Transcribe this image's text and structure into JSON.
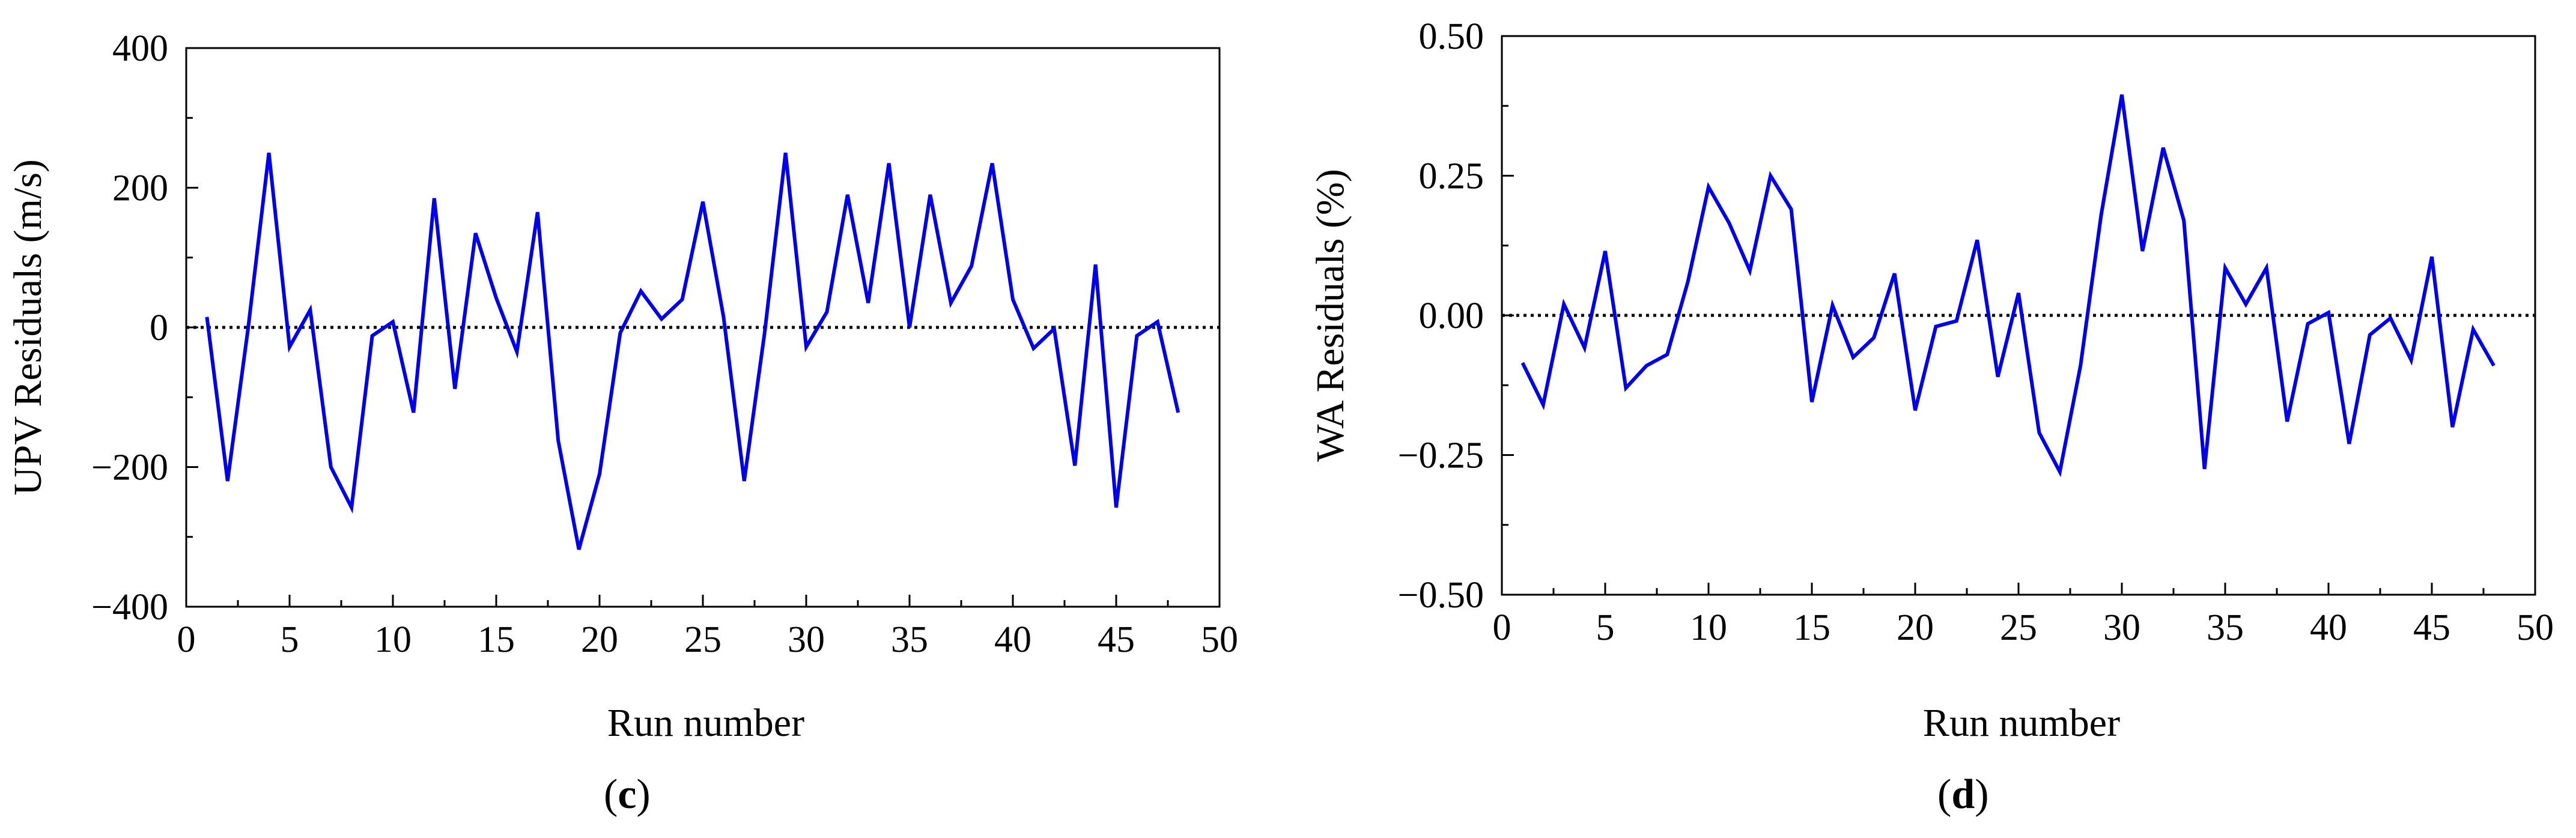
{
  "chart_data": [
    {
      "type": "line",
      "panel": "(c)",
      "panel_letter": "c",
      "xlabel": "Run number",
      "ylabel": "UPV Residuals (m/s)",
      "xlim": [
        0,
        50
      ],
      "ylim": [
        -400,
        400
      ],
      "xticks": [
        0,
        5,
        10,
        15,
        20,
        25,
        30,
        35,
        40,
        45,
        50
      ],
      "yticks": [
        -400,
        -200,
        0,
        200,
        400
      ],
      "ytick_labels": [
        "−400",
        "−200",
        "0",
        "200",
        "400"
      ],
      "reference_line": 0,
      "color": "#0000ee",
      "x": [
        1,
        2,
        3,
        4,
        5,
        6,
        7,
        8,
        9,
        10,
        11,
        12,
        13,
        14,
        15,
        16,
        17,
        18,
        19,
        20,
        21,
        22,
        23,
        24,
        25,
        26,
        27,
        28,
        29,
        30,
        31,
        32,
        33,
        34,
        35,
        36,
        37,
        38,
        39,
        40,
        41,
        42,
        43,
        44,
        45,
        46,
        47,
        48
      ],
      "values": [
        15,
        -220,
        0,
        250,
        -28,
        25,
        -200,
        -258,
        -12,
        8,
        -122,
        185,
        -88,
        135,
        42,
        -35,
        165,
        -162,
        -318,
        -210,
        -8,
        52,
        12,
        40,
        180,
        15,
        -220,
        -5,
        250,
        -28,
        22,
        190,
        35,
        235,
        0,
        190,
        35,
        88,
        235,
        40,
        -30,
        -2,
        -198,
        90,
        -258,
        -12,
        8,
        -122
      ]
    },
    {
      "type": "line",
      "panel": "(d)",
      "panel_letter": "d",
      "xlabel": "Run number",
      "ylabel": "WA Residuals (%)",
      "xlim": [
        0,
        50
      ],
      "ylim": [
        -0.5,
        0.5
      ],
      "xticks": [
        0,
        5,
        10,
        15,
        20,
        25,
        30,
        35,
        40,
        45,
        50
      ],
      "yticks": [
        -0.5,
        -0.25,
        0,
        0.25,
        0.5
      ],
      "ytick_labels": [
        "−0.50",
        "−0.25",
        "0.00",
        "0.25",
        "0.50"
      ],
      "reference_line": 0,
      "color": "#0000ee",
      "x": [
        1,
        2,
        3,
        4,
        5,
        6,
        7,
        8,
        9,
        10,
        11,
        12,
        13,
        14,
        15,
        16,
        17,
        18,
        19,
        20,
        21,
        22,
        23,
        24,
        25,
        26,
        27,
        28,
        29,
        30,
        31,
        32,
        33,
        34,
        35,
        36,
        37,
        38,
        39,
        40,
        41,
        42,
        43,
        44,
        45,
        46,
        47,
        48
      ],
      "values": [
        -0.085,
        -0.16,
        0.02,
        -0.058,
        0.115,
        -0.13,
        -0.09,
        -0.07,
        0.06,
        0.23,
        0.165,
        0.08,
        0.25,
        0.19,
        -0.155,
        0.018,
        -0.075,
        -0.04,
        0.075,
        -0.17,
        -0.02,
        -0.01,
        0.135,
        -0.11,
        0.04,
        -0.21,
        -0.28,
        -0.09,
        0.18,
        0.395,
        0.115,
        0.3,
        0.17,
        -0.275,
        0.085,
        0.02,
        0.085,
        -0.19,
        -0.015,
        0.005,
        -0.23,
        -0.035,
        -0.005,
        -0.08,
        0.105,
        -0.2,
        -0.025,
        -0.09
      ]
    }
  ]
}
